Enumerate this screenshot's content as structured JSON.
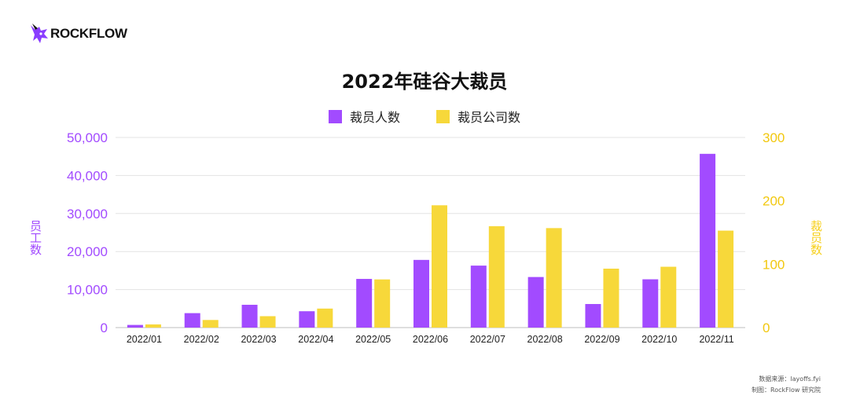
{
  "brand": {
    "name": "ROCKFLOW",
    "logo_icon": "unicorn-icon",
    "accent": "#8a3dff"
  },
  "colors": {
    "people": "#a24bff",
    "companies": "#f7d83a",
    "grid": "#e3e3e3"
  },
  "footer": {
    "source": "数据来源：layoffs.fyi",
    "credit": "制图：RockFlow 研究院"
  },
  "chart_data": {
    "type": "bar",
    "title": "2022年硅谷大裁员",
    "categories": [
      "2022/01",
      "2022/02",
      "2022/03",
      "2022/04",
      "2022/05",
      "2022/06",
      "2022/07",
      "2022/08",
      "2022/09",
      "2022/10",
      "2022/11"
    ],
    "series": [
      {
        "name": "裁员人数",
        "axis": "left",
        "values": [
          700,
          3800,
          6000,
          4300,
          12800,
          17800,
          16300,
          13300,
          6200,
          12700,
          45700
        ]
      },
      {
        "name": "裁员公司数",
        "axis": "right",
        "values": [
          5,
          12,
          18,
          30,
          76,
          193,
          160,
          157,
          93,
          96,
          153
        ]
      }
    ],
    "ylabel": "员工数",
    "ylabel_right": "裁员数",
    "ylim": [
      0,
      50000
    ],
    "ylim_right": [
      0,
      300
    ],
    "yticks": [
      "0",
      "10,000",
      "20,000",
      "30,000",
      "40,000",
      "50,000"
    ],
    "yticks_right": [
      "0",
      "100",
      "200",
      "300"
    ],
    "grid": true,
    "legend": "top-center"
  }
}
